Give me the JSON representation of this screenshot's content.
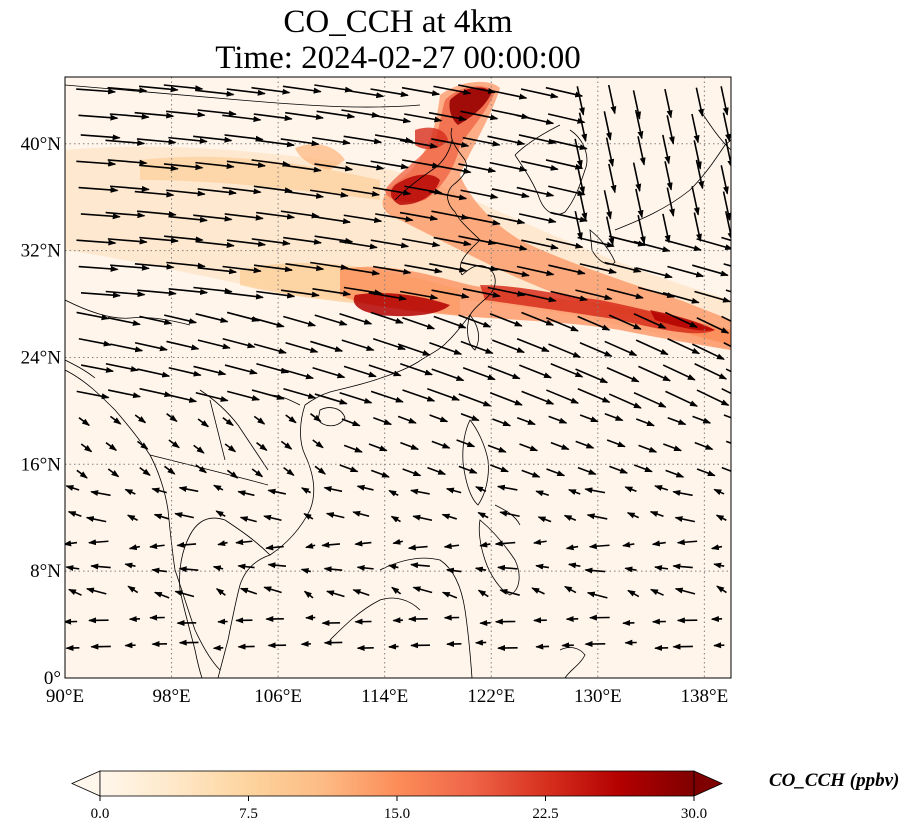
{
  "title": {
    "line1": "CO_CCH at 4km",
    "line2": "Time: 2024-02-27 00:00:00"
  },
  "map": {
    "lon_range": [
      90,
      140
    ],
    "lat_range": [
      0,
      45
    ],
    "gridlines": "dotted gray",
    "x_ticks": [
      {
        "value": 90,
        "label": "90°E"
      },
      {
        "value": 98,
        "label": "98°E"
      },
      {
        "value": 106,
        "label": "106°E"
      },
      {
        "value": 114,
        "label": "114°E"
      },
      {
        "value": 122,
        "label": "122°E"
      },
      {
        "value": 130,
        "label": "130°E"
      },
      {
        "value": 138,
        "label": "138°E"
      }
    ],
    "y_ticks": [
      {
        "value": 0,
        "label": "0°"
      },
      {
        "value": 8,
        "label": "8°N"
      },
      {
        "value": 16,
        "label": "16°N"
      },
      {
        "value": 24,
        "label": "24°N"
      },
      {
        "value": 32,
        "label": "32°N"
      },
      {
        "value": 40,
        "label": "40°N"
      }
    ],
    "background_color": "#fff5eb",
    "plume_color_max": "#7f0000",
    "coastline_color": "#000000",
    "vectors": "wind arrows, black"
  },
  "colorbar": {
    "label": "CO_CCH (ppbv)",
    "min": 0.0,
    "max": 30.0,
    "colormap": "OrRd",
    "extend": "both",
    "ticks": [
      {
        "value": 0,
        "label": "0.0"
      },
      {
        "value": 7.5,
        "label": "7.5"
      },
      {
        "value": 15,
        "label": "15.0"
      },
      {
        "value": 22.5,
        "label": "22.5"
      },
      {
        "value": 30,
        "label": "30.0"
      }
    ],
    "colors": [
      "#fff7ec",
      "#fee8c8",
      "#fdd49e",
      "#fdbb84",
      "#fc8d59",
      "#ef6548",
      "#d7301f",
      "#b30000",
      "#7f0000"
    ]
  }
}
